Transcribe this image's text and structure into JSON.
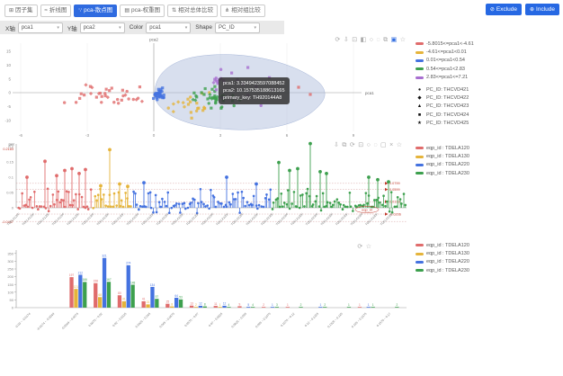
{
  "ui": {
    "tabs": [
      {
        "label": "因子集",
        "icon": "⊞",
        "icon_name": "grid-icon",
        "active": false
      },
      {
        "label": "折线图",
        "icon": "≈",
        "icon_name": "line-chart-icon",
        "active": false
      },
      {
        "label": "pca-散点图",
        "icon": "∵",
        "icon_name": "scatter-chart-icon",
        "active": true
      },
      {
        "label": "pca-权重图",
        "icon": "▤",
        "icon_name": "weight-chart-icon",
        "active": false
      },
      {
        "label": "相对总体比较",
        "icon": "⇅",
        "icon_name": "compare-overall-icon",
        "active": false
      },
      {
        "label": "相对组比较",
        "icon": "⋔",
        "icon_name": "compare-group-icon",
        "active": false
      }
    ],
    "actions": [
      {
        "label": "Exclude",
        "icon": "⊘",
        "icon_name": "exclude-icon"
      },
      {
        "label": "Include",
        "icon": "⊕",
        "icon_name": "include-icon"
      }
    ],
    "controls": [
      {
        "label": "X轴",
        "value": "pca1"
      },
      {
        "label": "Y轴",
        "value": "pca2"
      },
      {
        "label": "Color",
        "value": "pca1"
      },
      {
        "label": "Shape",
        "value": "PC_ID"
      }
    ],
    "tooltip": {
      "lines": [
        "pca1: 3.3349423597088452",
        "pca2: 10.157535188613165",
        "primary_key: TH920144A8"
      ]
    },
    "toolbox": {
      "scatter": [
        {
          "glyph": "⟳",
          "name": "restore-icon",
          "active": false
        },
        {
          "glyph": "⇩",
          "name": "save-image-icon",
          "active": false
        },
        {
          "glyph": "⊡",
          "name": "data-zoom-icon",
          "active": false
        },
        {
          "glyph": "◧",
          "name": "brush-rect-icon",
          "active": false
        },
        {
          "glyph": "○",
          "name": "brush-circle-icon",
          "active": false
        },
        {
          "glyph": "◌",
          "name": "brush-lasso-icon",
          "active": false
        },
        {
          "glyph": "⧉",
          "name": "copy-icon",
          "active": false
        },
        {
          "glyph": "▣",
          "name": "brush-keep-icon",
          "active": true
        },
        {
          "glyph": "☆",
          "name": "favorite-icon",
          "active": false
        }
      ],
      "manhattan": [
        {
          "glyph": "⇩",
          "name": "save-image-icon",
          "active": false
        },
        {
          "glyph": "⧉",
          "name": "copy-icon",
          "active": false
        },
        {
          "glyph": "⟳",
          "name": "restore-icon",
          "active": false
        },
        {
          "glyph": "⊡",
          "name": "data-zoom-icon",
          "active": false
        },
        {
          "glyph": "○",
          "name": "brush-circle-icon",
          "active": false
        },
        {
          "glyph": "◌",
          "name": "brush-lasso-icon",
          "active": false
        },
        {
          "glyph": "▢",
          "name": "brush-rect-icon",
          "active": false
        },
        {
          "glyph": "×",
          "name": "clear-icon",
          "active": false
        },
        {
          "glyph": "☆",
          "name": "favorite-icon",
          "active": false
        }
      ],
      "histogram": [
        {
          "glyph": "⟳",
          "name": "restore-icon",
          "active": false
        },
        {
          "glyph": "☆",
          "name": "favorite-icon",
          "active": false
        }
      ]
    },
    "accent_color": "#2f6be0"
  },
  "chart_data": [
    {
      "type": "scatter",
      "xlabel": "pca1",
      "ylabel": "pca2",
      "x_ticks": [
        -6,
        -3,
        0,
        3,
        6,
        9
      ],
      "y_ticks": [
        15,
        10,
        5,
        0,
        -5,
        -10
      ],
      "legend_color": [
        {
          "label": "-5.8015<=pca1<-4.61",
          "color": "#e06c6c"
        },
        {
          "label": "-4.61<=pca1<0.01",
          "color": "#e5b43b"
        },
        {
          "label": "0.01<=pca1<0.54",
          "color": "#4472e0"
        },
        {
          "label": "0.54<=pca1<2.83",
          "color": "#3da04e"
        },
        {
          "label": "2.83<=pca1<=7.21",
          "color": "#a86fd0"
        }
      ],
      "legend_shape": [
        {
          "label": "PC_ID: THCVD421",
          "glyph": "●"
        },
        {
          "label": "PC_ID: THCVD422",
          "glyph": "◆"
        },
        {
          "label": "PC_ID: THCVD423",
          "glyph": "▲"
        },
        {
          "label": "PC_ID: THCVD424",
          "glyph": "■"
        },
        {
          "label": "PC_ID: THCVD425",
          "glyph": "★"
        }
      ],
      "selected_point": {
        "pca1": 3.3349423597088452,
        "pca2": 10.157535188613165,
        "primary_key": "TH920144A8"
      },
      "clusters": [
        {
          "name": "pca1-bin-red",
          "color": "#e06c6c",
          "cx": 118,
          "cy": 66,
          "sx": 50,
          "sy": 12,
          "n": 34
        },
        {
          "name": "pca1-bin-yellow",
          "color": "#e5b43b",
          "cx": 210,
          "cy": 77,
          "sx": 28,
          "sy": 17,
          "n": 22
        },
        {
          "name": "pca1-bin-blue",
          "color": "#4472e0",
          "cx": 177,
          "cy": 64,
          "sx": 8,
          "sy": 8,
          "n": 32
        },
        {
          "name": "pca1-bin-green",
          "color": "#3da04e",
          "cx": 237,
          "cy": 68,
          "sx": 34,
          "sy": 13,
          "n": 38
        },
        {
          "name": "pca1-bin-purple-dense",
          "color": "#a86fd0",
          "cx": 243,
          "cy": 49,
          "sx": 8,
          "sy": 4,
          "n": 10
        },
        {
          "name": "pca1-bin-purple-sparse",
          "color": "#a86fd0",
          "cx": 262,
          "cy": 60,
          "sx": 50,
          "sy": 26,
          "n": 13
        }
      ],
      "outliers": [
        {
          "color": "#e06c6c",
          "x": 345,
          "y": 65
        },
        {
          "color": "#e06c6c",
          "x": 332,
          "y": 57
        }
      ],
      "brush_selection": true
    },
    {
      "type": "lollipop",
      "ylabel": "per",
      "y_ticks": [
        0.2,
        0.15,
        0.1,
        0.05,
        0
      ],
      "y_max_label": "0.2183",
      "y_min_label": "-0.0447",
      "ref_lines": [
        0.0799,
        0.0599,
        0.0199,
        -0.0206
      ],
      "x_axis_name": "eqp_id",
      "legend": [
        {
          "label": "eqp_id : TDELA120",
          "color": "#e06c6c"
        },
        {
          "label": "eqp_id : TDELA130",
          "color": "#e5b43b"
        },
        {
          "label": "eqp_id : TDELA220",
          "color": "#4472e0"
        },
        {
          "label": "eqp_id : TDELA230",
          "color": "#3da04e"
        }
      ],
      "segments": [
        {
          "name": "TDELA120",
          "color": "#e06c6c",
          "x0": 20,
          "x1": 103,
          "peaks": [
            [
              30,
              0.1
            ],
            [
              50,
              0.152
            ],
            [
              63,
              0.105
            ],
            [
              72,
              0.122
            ],
            [
              80,
              0.128
            ],
            [
              88,
              0.112
            ],
            [
              95,
              0.125
            ]
          ]
        },
        {
          "name": "TDELA130",
          "color": "#e5b43b",
          "x0": 103,
          "x1": 148,
          "peaks": [
            [
              112,
              0.072
            ],
            [
              122,
              0.19
            ],
            [
              133,
              0.078
            ],
            [
              142,
              0.07
            ]
          ]
        },
        {
          "name": "TDELA220",
          "color": "#4472e0",
          "x0": 148,
          "x1": 302,
          "peaks": [
            [
              160,
              0.082
            ],
            [
              252,
              0.1
            ],
            [
              285,
              0.078
            ]
          ]
        },
        {
          "name": "TDELA230",
          "color": "#3da04e",
          "x0": 302,
          "x1": 452,
          "peaks": [
            [
              310,
              0.148
            ],
            [
              322,
              0.122
            ],
            [
              331,
              0.128
            ],
            [
              345,
              0.21
            ],
            [
              356,
              0.118
            ],
            [
              363,
              0.112
            ],
            [
              410,
              0.1
            ],
            [
              420,
              0.092
            ],
            [
              432,
              0.085
            ]
          ]
        }
      ],
      "x_tick_label_suffix": "F"
    },
    {
      "type": "bar",
      "categories": [
        "-0.03 ~ -0.0174",
        "-0.0174 ~ -0.0049",
        "-0.0049 ~ 0.0075",
        "0.0075 ~ 0.02",
        "0.02 ~ 0.0325",
        "0.0325 ~ 0.045",
        "0.045 ~ 0.0575",
        "0.0575 ~ 0.07",
        "0.07 ~ 0.0825",
        "0.0825 ~ 0.095",
        "0.095 ~ 0.1075",
        "0.1075 ~ 0.12",
        "0.12 ~ 0.1325",
        "0.1325 ~ 0.145",
        "0.145 ~ 0.1575",
        "0.1575 ~ 0.17"
      ],
      "y_ticks": [
        0,
        50,
        100,
        150,
        200,
        250,
        300,
        350
      ],
      "series": [
        {
          "name": "eqp_id : TDELA120",
          "color": "#e06c6c",
          "values": [
            0,
            0,
            197,
            158,
            80,
            41,
            25,
            13,
            11,
            9,
            2,
            1,
            0,
            0,
            1,
            0
          ]
        },
        {
          "name": "eqp_id : TDELA130",
          "color": "#e5b43b",
          "values": [
            0,
            0,
            121,
            68,
            41,
            21,
            8,
            2,
            1,
            0,
            0,
            0,
            0,
            0,
            0,
            0
          ]
        },
        {
          "name": "eqp_id : TDELA220",
          "color": "#4472e0",
          "values": [
            0,
            0,
            212,
            321,
            274,
            134,
            64,
            12,
            12,
            5,
            1,
            0,
            1,
            0,
            1,
            0
          ]
        },
        {
          "name": "eqp_id : TDELA230",
          "color": "#3da04e",
          "values": [
            0,
            0,
            166,
            167,
            148,
            57,
            53,
            8,
            4,
            4,
            3,
            2,
            2,
            1,
            1,
            2
          ]
        }
      ],
      "legend": [
        {
          "label": "eqp_id : TDELA120",
          "color": "#e06c6c"
        },
        {
          "label": "eqp_id : TDELA130",
          "color": "#e5b43b"
        },
        {
          "label": "eqp_id : TDELA220",
          "color": "#4472e0"
        },
        {
          "label": "eqp_id : TDELA230",
          "color": "#3da04e"
        }
      ]
    }
  ]
}
